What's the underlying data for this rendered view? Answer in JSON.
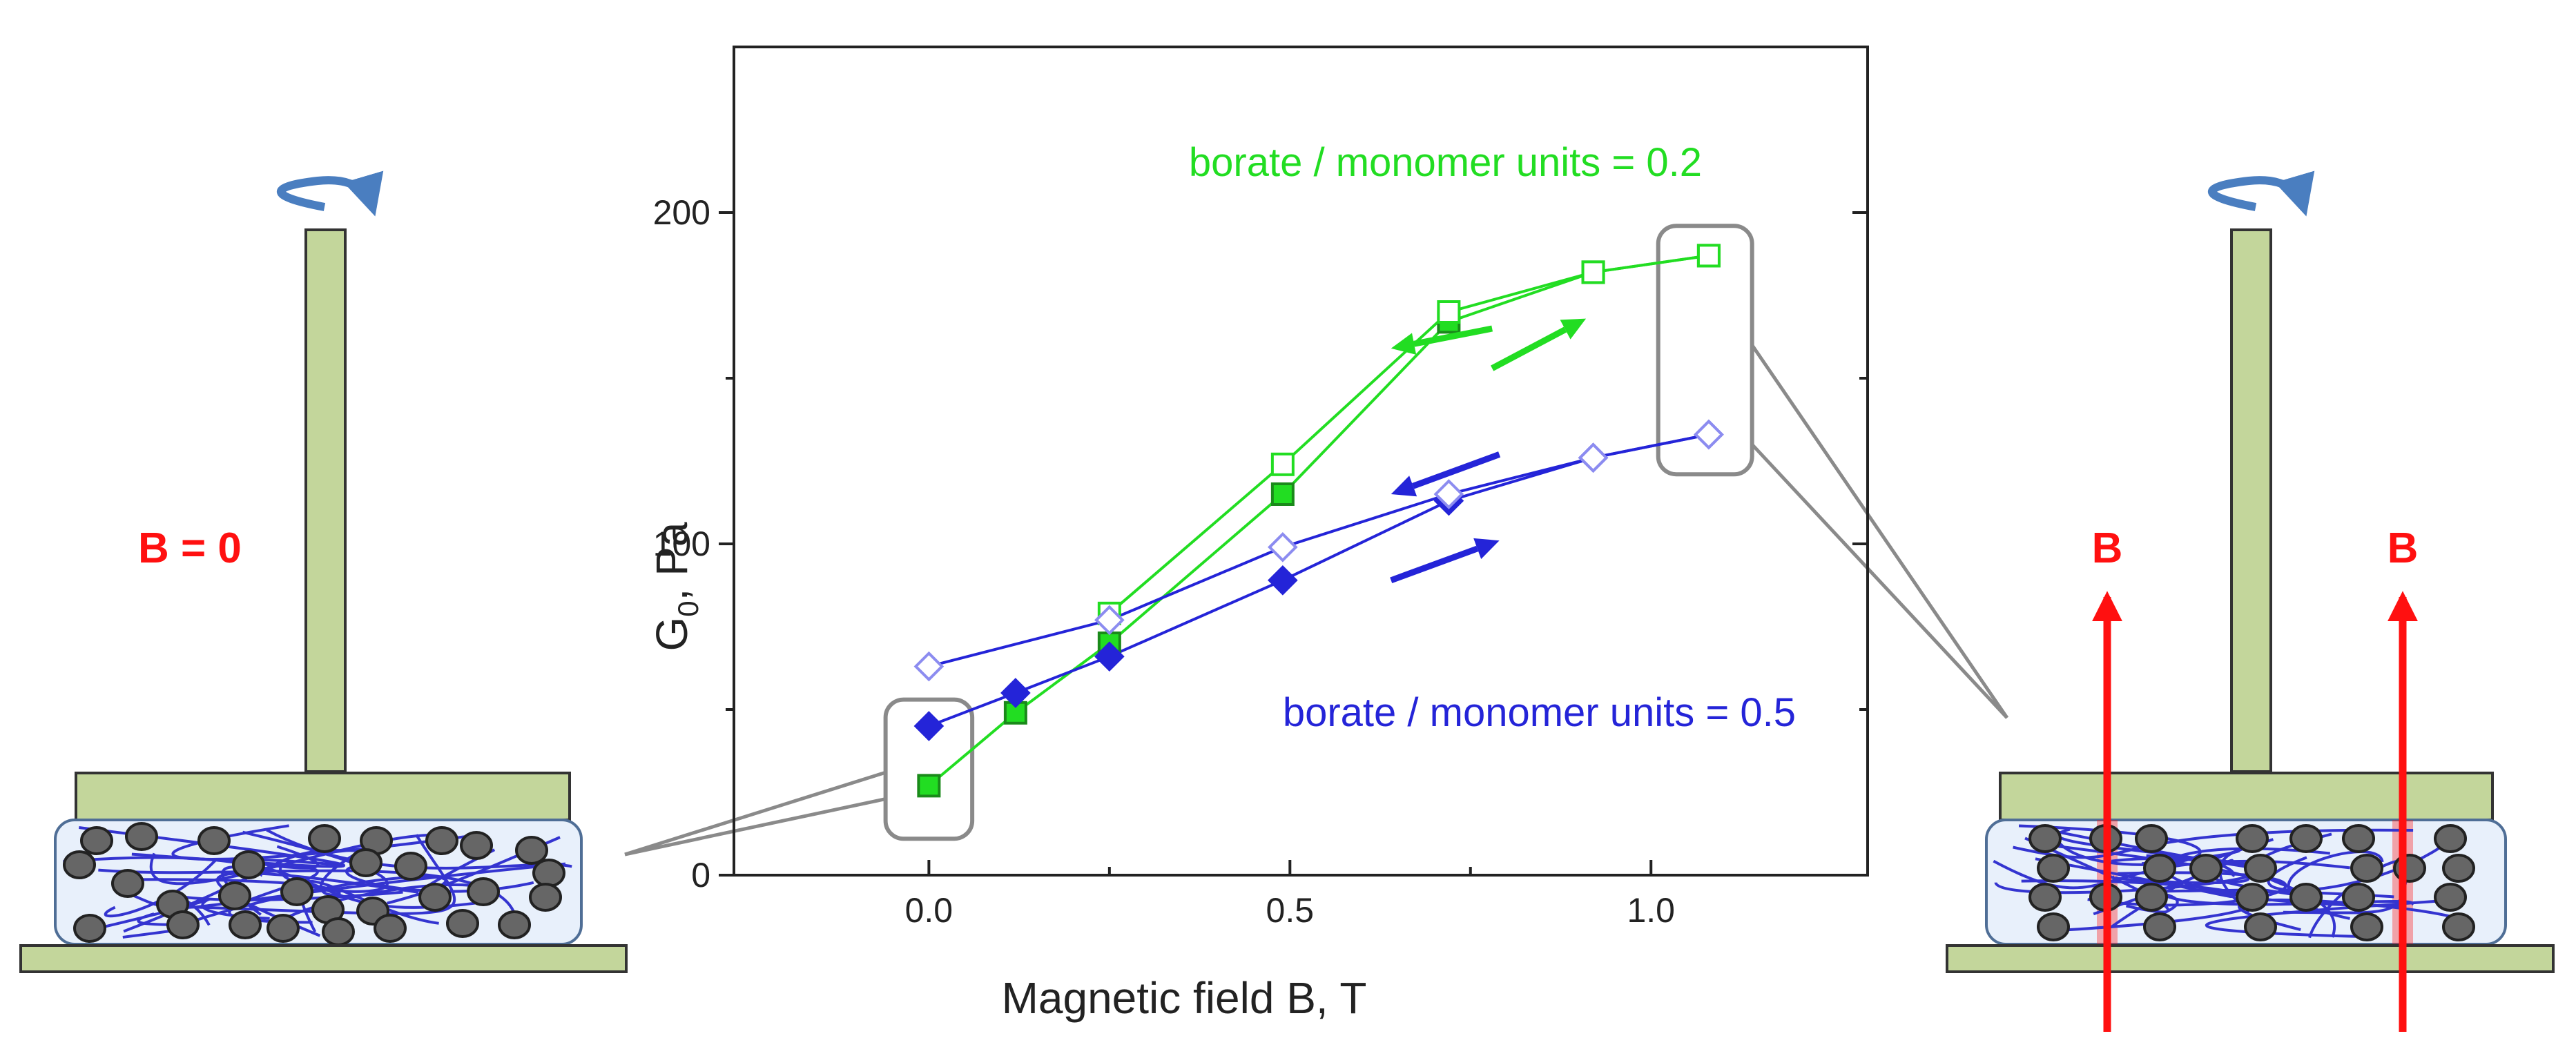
{
  "colors": {
    "green": "#22dd22",
    "green_dark": "#1a8a1a",
    "blue": "#2424d8",
    "blue_light": "#8c8cf0",
    "red": "#ff1010",
    "plate": "#c3d69b",
    "plate_stroke": "#333333",
    "particle": "#666666",
    "callout": "#8a8a8a",
    "rotation": "#4a7ec0"
  },
  "schematics": {
    "left_label": "B = 0",
    "right_labels": [
      "B",
      "B"
    ]
  },
  "chart_data": {
    "type": "scatter",
    "xlabel": "Magnetic field B, T",
    "ylabel": "G0, Pa",
    "ylabel_main": "G",
    "ylabel_sub": "0",
    "ylabel_rest": ", Pa",
    "xlim": [
      -0.27,
      1.3
    ],
    "ylim": [
      0,
      250
    ],
    "x_ticks": [
      0.0,
      0.5,
      1.0
    ],
    "x_tick_labels": [
      "0.0",
      "0.5",
      "1.0"
    ],
    "y_ticks": [
      0,
      100,
      200
    ],
    "y_tick_labels": [
      "0",
      "100",
      "200"
    ],
    "y_minor_ticks": [
      50,
      150
    ],
    "grid": false,
    "series": [
      {
        "name": "borate / monomer units = 0.2",
        "color": "green",
        "marker": "square",
        "filled": true,
        "x": [
          0.0,
          0.12,
          0.25,
          0.49,
          0.72,
          0.92,
          1.08
        ],
        "y": [
          27,
          49,
          70,
          115,
          167,
          182,
          187
        ]
      },
      {
        "name": "borate / monomer units = 0.2",
        "color": "green",
        "marker": "square",
        "filled": false,
        "x": [
          0.25,
          0.49,
          0.72,
          0.92,
          1.08
        ],
        "y": [
          79,
          124,
          170,
          182,
          187
        ]
      },
      {
        "name": "borate / monomer units = 0.5",
        "color": "blue",
        "marker": "diamond",
        "filled": true,
        "x": [
          0.0,
          0.12,
          0.25,
          0.49,
          0.72,
          0.92,
          1.08
        ],
        "y": [
          45,
          55,
          66,
          89,
          113,
          126,
          133
        ]
      },
      {
        "name": "borate / monomer units = 0.5",
        "color": "blue",
        "marker": "diamond",
        "filled": false,
        "x": [
          0.0,
          0.25,
          0.49,
          0.72,
          0.92,
          1.08
        ],
        "y": [
          63,
          77,
          99,
          115,
          126,
          133
        ]
      }
    ],
    "annotations": [
      {
        "text": "borate / monomer units = 0.2",
        "color": "green",
        "x": 0.36,
        "y": 211
      },
      {
        "text": "borate / monomer units = 0.5",
        "color": "blue",
        "x": 0.49,
        "y": 45
      }
    ],
    "arrows": [
      {
        "color": "green",
        "from": [
          0.78,
          165
        ],
        "to": [
          0.64,
          159
        ]
      },
      {
        "color": "green",
        "from": [
          0.78,
          153
        ],
        "to": [
          0.91,
          168
        ]
      },
      {
        "color": "blue",
        "from": [
          0.79,
          127
        ],
        "to": [
          0.64,
          115
        ]
      },
      {
        "color": "blue",
        "from": [
          0.64,
          89
        ],
        "to": [
          0.79,
          101
        ]
      }
    ],
    "highlight_boxes": [
      {
        "x": [
          -0.06,
          0.06
        ],
        "y": [
          11,
          53
        ]
      },
      {
        "x": [
          1.01,
          1.14
        ],
        "y": [
          196,
          121
        ]
      }
    ]
  }
}
